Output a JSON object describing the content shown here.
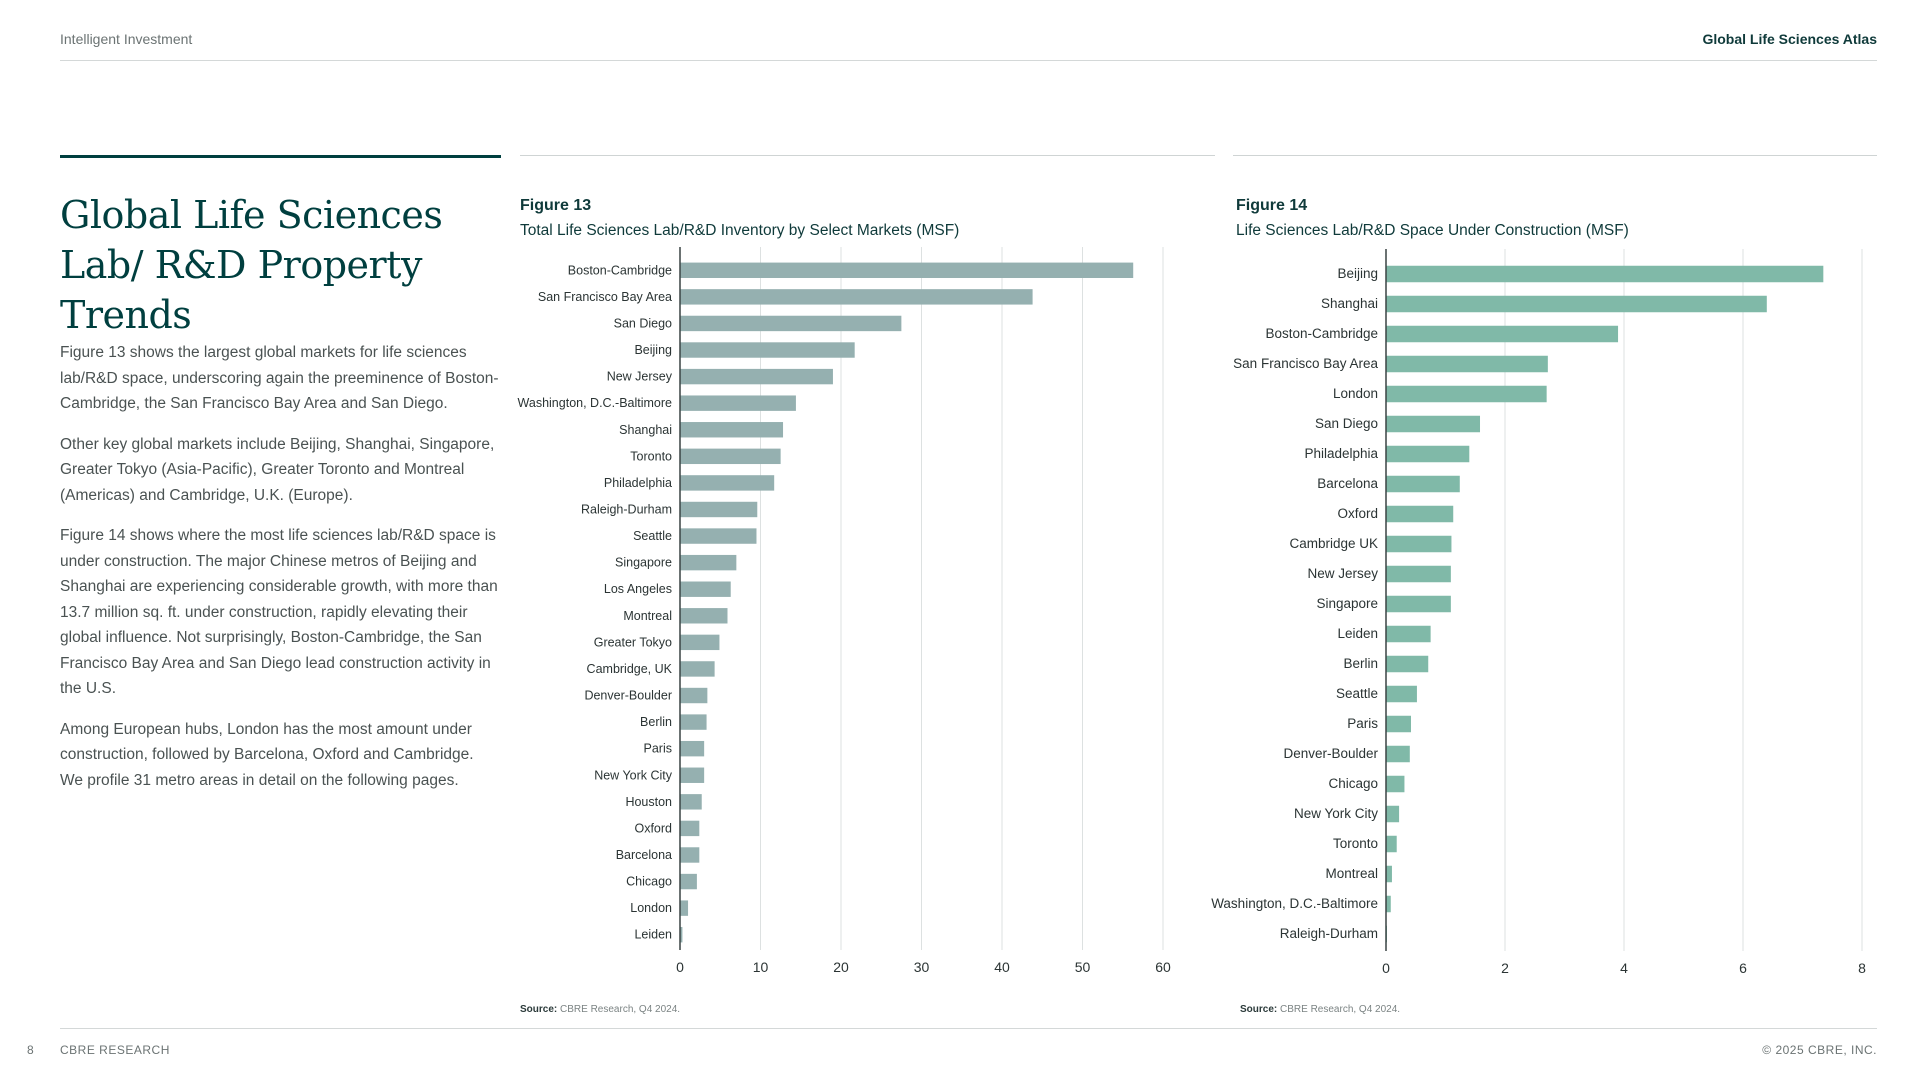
{
  "header": {
    "left": "Intelligent Investment",
    "right": "Global Life Sciences Atlas"
  },
  "title": "Global Life Sciences Lab/ R&D Property Trends",
  "body": [
    "Figure 13 shows the largest global markets for life sciences lab/R&D space, underscoring again the preeminence of Boston-Cambridge, the San Francisco Bay Area and San Diego.",
    "Other key global markets include Beijing, Shanghai, Singapore, Greater Tokyo (Asia-Pacific), Greater Toronto and Montreal (Americas) and Cambridge, U.K. (Europe).",
    "Figure 14 shows where the most life sciences lab/R&D space is under construction. The major Chinese metros of Beijing and Shanghai are experiencing considerable growth, with more than 13.7 million sq. ft. under construction, rapidly elevating their global influence. Not surprisingly, Boston-Cambridge, the San Francisco Bay Area and San Diego lead construction activity in the U.S.",
    "Among European hubs, London has the most amount under construction, followed by Barcelona, Oxford and Cambridge. We profile 31 metro areas in detail on the following pages."
  ],
  "figures": {
    "fig13": {
      "number": "Figure 13",
      "title": "Total Life Sciences Lab/R&D Inventory by Select Markets (MSF)",
      "source_label": "Source:",
      "source_text": "CBRE Research, Q4 2024."
    },
    "fig14": {
      "number": "Figure 14",
      "title": "Life Sciences Lab/R&D Space Under Construction (MSF)",
      "source_label": "Source:",
      "source_text": "CBRE Research, Q4 2024."
    }
  },
  "footer": {
    "page_number": "8",
    "left": "CBRE RESEARCH",
    "right": "© 2025 CBRE, INC."
  },
  "colors": {
    "fig13_bar": "#95b0b0",
    "fig14_bar": "#80b9a8",
    "gridline": "#dde1e1",
    "axis": "#3a4444"
  },
  "chart_data": [
    {
      "type": "bar",
      "orientation": "horizontal",
      "title": "Total Life Sciences Lab/R&D Inventory by Select Markets (MSF)",
      "categories": [
        "Boston-Cambridge",
        "San Francisco Bay Area",
        "San Diego",
        "Beijing",
        "New Jersey",
        "Washington, D.C.-Baltimore",
        "Shanghai",
        "Toronto",
        "Philadelphia",
        "Raleigh-Durham",
        "Seattle",
        "Singapore",
        "Los Angeles",
        "Montreal",
        "Greater Tokyo",
        "Cambridge, UK",
        "Denver-Boulder",
        "Berlin",
        "Paris",
        "New York City",
        "Houston",
        "Oxford",
        "Barcelona",
        "Chicago",
        "London",
        "Leiden"
      ],
      "values": [
        56.3,
        43.8,
        27.5,
        21.7,
        19.0,
        14.4,
        12.8,
        12.5,
        11.7,
        9.6,
        9.5,
        7.0,
        6.3,
        5.9,
        4.9,
        4.3,
        3.4,
        3.3,
        3.0,
        3.0,
        2.7,
        2.4,
        2.4,
        2.1,
        1.0,
        0.3
      ],
      "xlim": [
        0,
        60
      ],
      "xticks": [
        0,
        10,
        20,
        30,
        40,
        50,
        60
      ],
      "grid": true
    },
    {
      "type": "bar",
      "orientation": "horizontal",
      "title": "Life Sciences Lab/R&D Space Under Construction (MSF)",
      "categories": [
        "Beijing",
        "Shanghai",
        "Boston-Cambridge",
        "San Francisco Bay Area",
        "London",
        "San Diego",
        "Philadelphia",
        "Barcelona",
        "Oxford",
        "Cambridge UK",
        "New Jersey",
        "Singapore",
        "Leiden",
        "Berlin",
        "Seattle",
        "Paris",
        "Denver-Boulder",
        "Chicago",
        "New York City",
        "Toronto",
        "Montreal",
        "Washington, D.C.-Baltimore",
        "Raleigh-Durham"
      ],
      "values": [
        7.35,
        6.4,
        3.9,
        2.72,
        2.7,
        1.58,
        1.4,
        1.24,
        1.13,
        1.1,
        1.09,
        1.09,
        0.75,
        0.71,
        0.52,
        0.42,
        0.4,
        0.31,
        0.22,
        0.18,
        0.1,
        0.08,
        0.01
      ],
      "xlim": [
        0,
        8
      ],
      "xticks": [
        0,
        2,
        4,
        6,
        8
      ],
      "grid": true
    }
  ]
}
